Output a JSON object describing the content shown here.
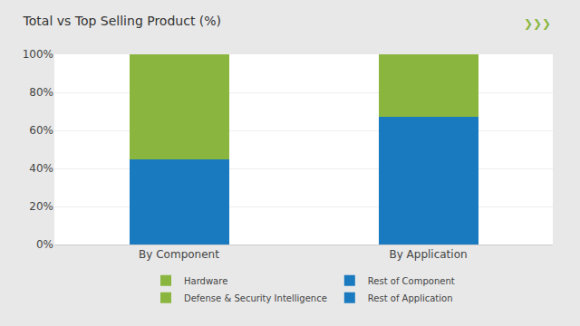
{
  "chart_data": {
    "type": "bar",
    "title": "Total vs Top Selling Product (%)",
    "categories": [
      "By Component",
      "By Application"
    ],
    "series": [
      {
        "name": "Rest of Application",
        "color": "#1a7abf",
        "values": [
          null,
          67
        ]
      },
      {
        "name": "Defense & Security Intelligence",
        "color": "#8ab63f",
        "values": [
          null,
          33
        ]
      },
      {
        "name": "Rest of Component",
        "color": "#1a7abf",
        "values": [
          45,
          null
        ]
      },
      {
        "name": "Hardware",
        "color": "#8ab63f",
        "values": [
          55,
          null
        ]
      }
    ],
    "stacked": true,
    "ylim": [
      0,
      100
    ],
    "yticks": [
      {
        "value": 0,
        "label": "0%"
      },
      {
        "value": 20,
        "label": "20%"
      },
      {
        "value": 40,
        "label": "40%"
      },
      {
        "value": 60,
        "label": "60%"
      },
      {
        "value": 80,
        "label": "80%"
      },
      {
        "value": 100,
        "label": "100%"
      }
    ],
    "grid": true,
    "legend": "bottom",
    "annotations": [
      "❯❯❯"
    ]
  }
}
